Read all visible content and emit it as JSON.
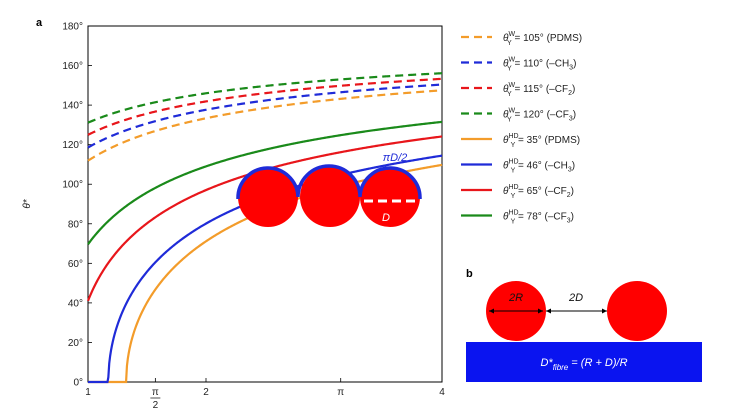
{
  "panel_a_label": "a",
  "panel_b_label": "b",
  "chart_data": {
    "type": "line",
    "xlabel": "",
    "ylabel": "θ*",
    "xlim": [
      1,
      4
    ],
    "ylim": [
      0,
      180
    ],
    "x_ticks": [
      {
        "value": 1,
        "label": "1"
      },
      {
        "value": 1.5708,
        "label": "π/2"
      },
      {
        "value": 2,
        "label": "2"
      },
      {
        "value": 3.1416,
        "label": "π"
      },
      {
        "value": 4,
        "label": "4"
      }
    ],
    "y_ticks": [
      {
        "value": 0,
        "label": "0°"
      },
      {
        "value": 20,
        "label": "20°"
      },
      {
        "value": 40,
        "label": "40°"
      },
      {
        "value": 60,
        "label": "60°"
      },
      {
        "value": 80,
        "label": "80°"
      },
      {
        "value": 100,
        "label": "100°"
      },
      {
        "value": 120,
        "label": "120°"
      },
      {
        "value": 140,
        "label": "140°"
      },
      {
        "value": 160,
        "label": "160°"
      },
      {
        "value": 180,
        "label": "180°"
      }
    ],
    "series": [
      {
        "name": "θY W = 105° (PDMS)",
        "theta_y": 105,
        "kind": "W",
        "dash": true,
        "color": "#f39c2a",
        "legend_sup": "W",
        "legend_rest": " = 105° (PDMS)"
      },
      {
        "name": "θY W = 110° (–CH3)",
        "theta_y": 110,
        "kind": "W",
        "dash": true,
        "color": "#1f2bd8",
        "legend_sup": "W",
        "legend_rest": " = 110° (–CH",
        "legend_sub": "3",
        "legend_end": ")"
      },
      {
        "name": "θY W = 115° (–CF2)",
        "theta_y": 115,
        "kind": "W",
        "dash": true,
        "color": "#e8161b",
        "legend_sup": "W",
        "legend_rest": " = 115° (–CF",
        "legend_sub": "2",
        "legend_end": ")"
      },
      {
        "name": "θY W = 120° (–CF3)",
        "theta_y": 120,
        "kind": "W",
        "dash": true,
        "color": "#1a8a1a",
        "legend_sup": "W",
        "legend_rest": " = 120° (–CF",
        "legend_sub": "3",
        "legend_end": ")"
      },
      {
        "name": "θY HD = 35° (PDMS)",
        "theta_y": 35,
        "kind": "HD",
        "dash": false,
        "color": "#f39c2a",
        "legend_sup": "HD",
        "legend_rest": " = 35° (PDMS)"
      },
      {
        "name": "θY HD = 46° (–CH3)",
        "theta_y": 46,
        "kind": "HD",
        "dash": false,
        "color": "#1f2bd8",
        "legend_sup": "HD",
        "legend_rest": " = 46° (–CH",
        "legend_sub": "3",
        "legend_end": ")"
      },
      {
        "name": "θY HD = 65° (–CF2)",
        "theta_y": 65,
        "kind": "HD",
        "dash": false,
        "color": "#e8161b",
        "legend_sup": "HD",
        "legend_rest": " = 65° (–CF",
        "legend_sub": "2",
        "legend_end": ")"
      },
      {
        "name": "θY HD = 78° (–CF3)",
        "theta_y": 78,
        "kind": "HD",
        "dash": false,
        "color": "#1a8a1a",
        "legend_sup": "HD",
        "legend_rest": " = 78° (–CF",
        "legend_sub": "3",
        "legend_end": ")"
      }
    ],
    "legend_theta": "θ",
    "legend_y_sub": "Y"
  },
  "inset_a": {
    "arc_label": "πD/2",
    "diameter_label": "D",
    "fiber_color": "#ff0000",
    "arc_color": "#1f2bd8"
  },
  "panel_b": {
    "radius_label": "2R",
    "spacing_label": "2D",
    "formula_main": "D*",
    "formula_sub": "fibre",
    "formula_rest": " = (R + D)/R",
    "fiber_color": "#ff0000",
    "substrate_color": "#0a14f0"
  }
}
